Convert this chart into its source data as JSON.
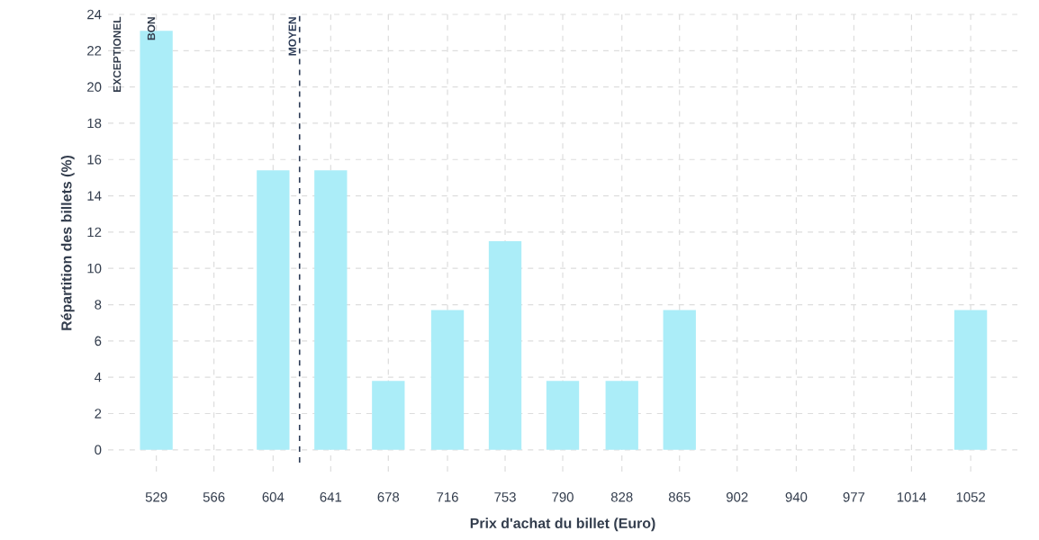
{
  "chart_data": {
    "type": "bar",
    "xlabel": "Prix d'achat du billet (Euro)",
    "ylabel": "Répartition des billets (%)",
    "x": [
      529,
      566,
      604,
      641,
      678,
      716,
      753,
      790,
      828,
      865,
      902,
      940,
      977,
      1014,
      1052
    ],
    "values": [
      23.1,
      0,
      15.4,
      15.4,
      3.8,
      7.7,
      11.5,
      3.8,
      3.8,
      7.7,
      0,
      0,
      0,
      0,
      7.7
    ],
    "color": "#abedf8",
    "xlim": [
      498,
      1082
    ],
    "xticks": [
      529,
      566,
      604,
      641,
      678,
      716,
      753,
      790,
      828,
      865,
      902,
      940,
      977,
      1014,
      1052
    ],
    "ylim": [
      -1.2,
      24
    ],
    "yticks": [
      0,
      2,
      4,
      6,
      8,
      10,
      12,
      14,
      16,
      18,
      20,
      22,
      24
    ],
    "grid": true,
    "ref_lines": [
      {
        "axis": "x",
        "value": 621,
        "label": "MOYEN",
        "color": "#2b3a55",
        "line_style": "dashed"
      }
    ],
    "annotations": [
      "EXCEPTIONEL",
      "BON"
    ]
  }
}
